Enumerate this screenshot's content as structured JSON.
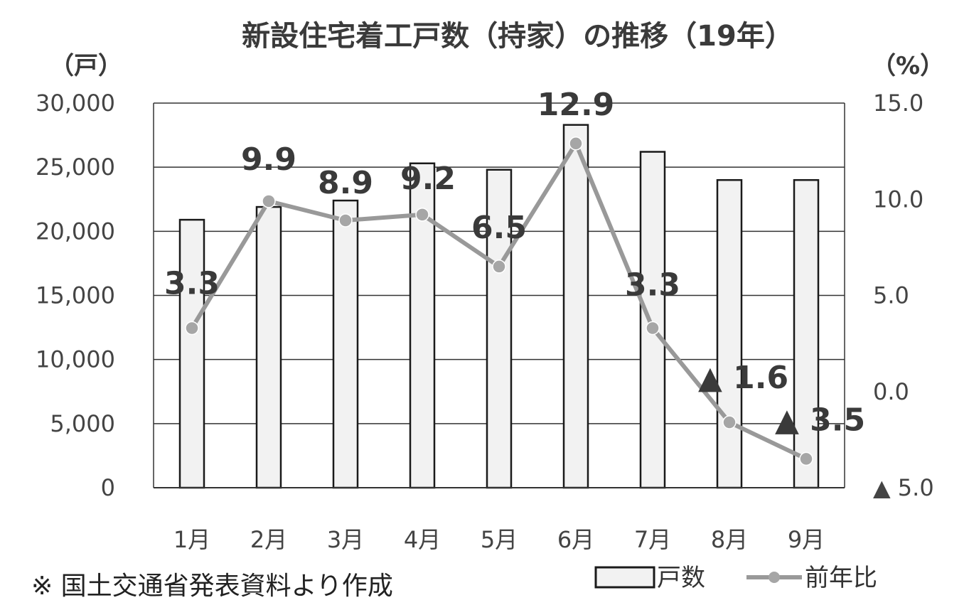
{
  "chart_data": {
    "type": "bar",
    "title": "新設住宅着工戸数（持家）の推移（19年）",
    "left_unit": "（戸）",
    "right_unit": "（%）",
    "categories": [
      "1月",
      "2月",
      "3月",
      "4月",
      "5月",
      "6月",
      "7月",
      "8月",
      "9月"
    ],
    "series": [
      {
        "name": "戸数",
        "kind": "bar",
        "axis": "left",
        "values": [
          20900,
          21900,
          22400,
          25300,
          24800,
          28300,
          26200,
          24000,
          24000
        ]
      },
      {
        "name": "前年比",
        "kind": "line",
        "axis": "right",
        "values": [
          3.3,
          9.9,
          8.9,
          9.2,
          6.5,
          12.9,
          3.3,
          -1.6,
          -3.5
        ],
        "labels": [
          "3.3",
          "9.9",
          "8.9",
          "9.2",
          "6.5",
          "12.9",
          "3.3",
          "▲ 1.6",
          "▲ 3.5"
        ]
      }
    ],
    "left_axis": {
      "min": 0,
      "max": 30000,
      "ticks": [
        {
          "value": 0,
          "label": "0"
        },
        {
          "value": 5000,
          "label": "5,000"
        },
        {
          "value": 10000,
          "label": "10,000"
        },
        {
          "value": 15000,
          "label": "15,000"
        },
        {
          "value": 20000,
          "label": "20,000"
        },
        {
          "value": 25000,
          "label": "25,000"
        },
        {
          "value": 30000,
          "label": "30,000"
        }
      ]
    },
    "right_axis": {
      "min": -5,
      "max": 15,
      "ticks": [
        {
          "value": -5,
          "label": "▲ 5.0"
        },
        {
          "value": 0,
          "label": "0.0"
        },
        {
          "value": 5,
          "label": "5.0"
        },
        {
          "value": 10,
          "label": "10.0"
        },
        {
          "value": 15,
          "label": "15.0"
        }
      ]
    },
    "grid": true,
    "legend_placement": "bottom-right",
    "colors": {
      "bar_fill": "#f2f2f2",
      "bar_stroke": "#1a1a1a",
      "line": "#999999",
      "marker": "#a6a6a6",
      "grid": "#333333"
    }
  },
  "note": "※ 国土交通省発表資料より作成"
}
